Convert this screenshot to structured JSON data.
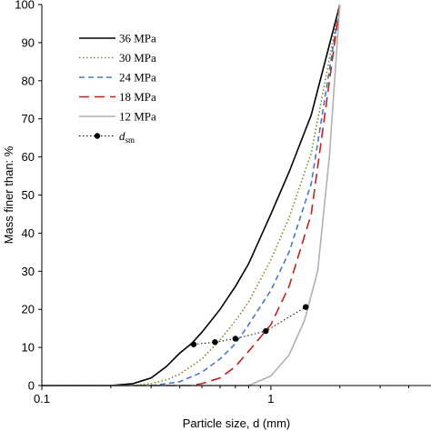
{
  "chart_data": {
    "type": "line",
    "title": "",
    "xlabel": "Particle size, d (mm)",
    "ylabel": "Mass finer than: %",
    "xscale": "log",
    "xlim": [
      0.1,
      5
    ],
    "ylim": [
      0,
      100
    ],
    "yticks": [
      0,
      10,
      20,
      30,
      40,
      50,
      60,
      70,
      80,
      90,
      100
    ],
    "xticks": [
      0.1,
      1
    ],
    "xtick_labels": [
      "0.1",
      "1"
    ],
    "grid": false,
    "legend_position": "top-left",
    "series": [
      {
        "name": "36 MPa",
        "color": "#000000",
        "dash": "solid",
        "x": [
          0.1,
          0.2,
          0.25,
          0.3,
          0.35,
          0.4,
          0.45,
          0.5,
          0.6,
          0.7,
          0.8,
          1.0,
          1.2,
          1.5,
          2.0
        ],
        "y": [
          0,
          0,
          0.5,
          2,
          5,
          8.5,
          11,
          14,
          20,
          26,
          32,
          45,
          56,
          71,
          100
        ]
      },
      {
        "name": "30 MPa",
        "color": "#6f8f1f",
        "dash": "dotted",
        "x": [
          0.1,
          0.25,
          0.3,
          0.35,
          0.4,
          0.5,
          0.6,
          0.7,
          0.8,
          1.0,
          1.2,
          1.5,
          2.0
        ],
        "y": [
          0,
          0,
          0.5,
          1.5,
          3,
          7,
          12,
          17,
          22,
          33,
          44,
          61,
          100
        ]
      },
      {
        "name": "24 MPa",
        "color": "#4a78c0",
        "dash": "dashed",
        "x": [
          0.1,
          0.3,
          0.35,
          0.4,
          0.5,
          0.6,
          0.7,
          0.8,
          1.0,
          1.2,
          1.5,
          2.0
        ],
        "y": [
          0,
          0,
          0.5,
          1,
          3.5,
          7,
          11,
          16,
          25,
          35,
          53,
          100
        ]
      },
      {
        "name": "18 MPa",
        "color": "#c0201f",
        "dash": "longdash",
        "x": [
          0.1,
          0.45,
          0.5,
          0.6,
          0.7,
          0.8,
          1.0,
          1.2,
          1.5,
          2.0
        ],
        "y": [
          0,
          0,
          0.5,
          2,
          5,
          9,
          16,
          26,
          45,
          100
        ]
      },
      {
        "name": "12 MPa",
        "color": "#b0b0b0",
        "dash": "solid",
        "x": [
          0.1,
          0.8,
          1.0,
          1.2,
          1.4,
          1.6,
          1.8,
          2.0
        ],
        "y": [
          0,
          0,
          2.5,
          8,
          17,
          30,
          60,
          100
        ]
      },
      {
        "name": "d_sm",
        "label_main": "d",
        "label_sub": "sm",
        "color": "#000000",
        "dash": "dotted",
        "marker": "circle",
        "x": [
          0.46,
          0.57,
          0.7,
          0.95,
          1.42
        ],
        "y": [
          10.8,
          11.4,
          12.3,
          14.3,
          20.6
        ]
      }
    ]
  }
}
